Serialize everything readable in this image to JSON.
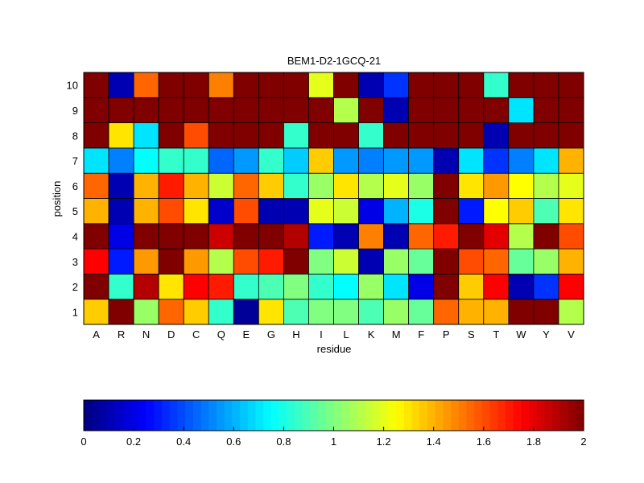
{
  "chart_data": {
    "type": "heatmap",
    "title": "BEM1-D2-1GCQ-21",
    "xlabel": "residue",
    "ylabel": "position",
    "x_categories": [
      "A",
      "R",
      "N",
      "D",
      "C",
      "Q",
      "E",
      "G",
      "H",
      "I",
      "L",
      "K",
      "M",
      "F",
      "P",
      "S",
      "T",
      "W",
      "Y",
      "V"
    ],
    "y_categories": [
      "1",
      "2",
      "3",
      "4",
      "5",
      "6",
      "7",
      "8",
      "9",
      "10"
    ],
    "colormap": "jet",
    "clim": [
      0,
      2
    ],
    "colorbar": {
      "placement": "bottom",
      "ticks": [
        0,
        0.2,
        0.4,
        0.6,
        0.8,
        1,
        1.2,
        1.4,
        1.6,
        1.8,
        2
      ],
      "tick_labels": [
        "0",
        "0.2",
        "0.4",
        "0.6",
        "0.8",
        "1",
        "1.2",
        "1.4",
        "1.6",
        "1.8",
        "2"
      ]
    },
    "values": [
      [
        1.35,
        2.0,
        1.05,
        1.55,
        1.35,
        0.85,
        0.05,
        1.3,
        0.9,
        1.0,
        1.0,
        0.9,
        1.05,
        0.95,
        1.55,
        1.4,
        1.4,
        2.0,
        2.0,
        1.1
      ],
      [
        2.0,
        0.85,
        1.9,
        1.3,
        1.75,
        1.7,
        0.85,
        0.9,
        1.0,
        0.85,
        0.75,
        1.05,
        0.7,
        0.2,
        2.0,
        1.35,
        1.75,
        0.1,
        0.35,
        1.75
      ],
      [
        1.75,
        0.3,
        1.45,
        2.0,
        1.45,
        1.1,
        1.6,
        1.7,
        2.0,
        1.0,
        1.15,
        0.1,
        1.05,
        0.95,
        2.0,
        1.6,
        1.55,
        0.95,
        1.05,
        1.4
      ],
      [
        2.0,
        0.2,
        2.0,
        2.0,
        2.0,
        1.85,
        2.0,
        2.0,
        1.9,
        0.3,
        0.1,
        1.5,
        0.1,
        1.55,
        1.7,
        2.0,
        1.8,
        1.1,
        2.0,
        1.6
      ],
      [
        1.4,
        0.1,
        1.4,
        1.6,
        1.3,
        0.15,
        1.6,
        0.1,
        0.1,
        1.2,
        1.15,
        0.2,
        0.6,
        0.8,
        2.0,
        0.3,
        1.25,
        1.35,
        0.9,
        1.3
      ],
      [
        1.55,
        0.1,
        1.4,
        1.7,
        1.4,
        1.15,
        1.55,
        1.35,
        0.85,
        1.05,
        1.3,
        1.1,
        1.2,
        1.05,
        2.0,
        1.3,
        1.45,
        1.25,
        1.1,
        1.2
      ],
      [
        0.7,
        0.5,
        0.75,
        0.85,
        0.85,
        0.45,
        0.55,
        0.85,
        0.65,
        1.35,
        0.55,
        0.5,
        0.55,
        0.55,
        0.1,
        0.7,
        0.35,
        0.5,
        0.7,
        1.4
      ],
      [
        2.0,
        1.3,
        0.7,
        2.0,
        1.6,
        2.0,
        2.0,
        2.0,
        0.85,
        2.0,
        2.0,
        0.85,
        2.0,
        2.0,
        2.0,
        2.0,
        0.1,
        2.0,
        2.0,
        2.0
      ],
      [
        2.0,
        2.0,
        2.0,
        2.0,
        2.0,
        2.0,
        2.0,
        2.0,
        2.0,
        2.0,
        1.1,
        2.0,
        0.1,
        2.0,
        2.0,
        2.0,
        2.0,
        0.7,
        2.0,
        2.0
      ],
      [
        2.0,
        0.1,
        1.55,
        2.0,
        2.0,
        1.5,
        2.0,
        2.0,
        2.0,
        1.2,
        2.0,
        0.1,
        0.35,
        2.0,
        2.0,
        2.0,
        0.85,
        2.0,
        2.0,
        2.0
      ]
    ]
  }
}
